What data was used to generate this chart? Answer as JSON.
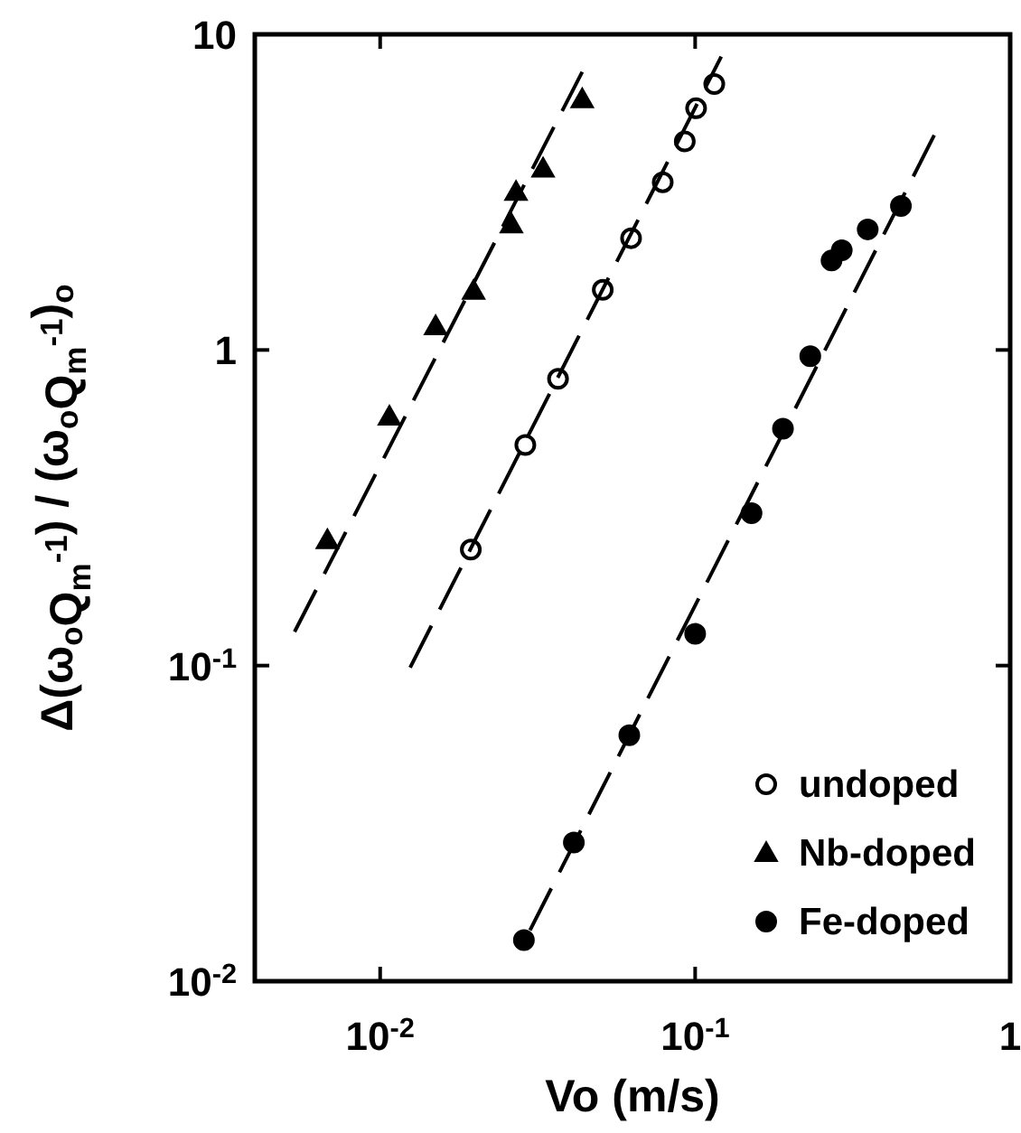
{
  "chart_data": {
    "type": "scatter",
    "xlabel": "Vo (m/s)",
    "ylabel": "Δ(ω$_{o}$Q$_{m}$$^{-1}$) / (ω$_{o}$Q$_{m}$$^{-1}$)$_{o}$",
    "log": "xy",
    "xlim": [
      0.004,
      1
    ],
    "ylim": [
      0.01,
      10
    ],
    "xticks": [
      {
        "value": 0.01,
        "label": "10$^{-2}$"
      },
      {
        "value": 0.1,
        "label": "10$^{-1}$"
      },
      1
    ],
    "yticks": [
      {
        "value": 0.01,
        "label": "10$^{-2}$"
      },
      {
        "value": 0.1,
        "label": "10$^{-1}$"
      },
      1,
      10
    ],
    "grid": false,
    "legend": "bottom right",
    "series": [
      {
        "name": "undoped",
        "color": "#ffffff",
        "marker": "circle",
        "x": [
          0.0194,
          0.0289,
          0.0367,
          0.0509,
          0.0626,
          0.0789,
          0.0927,
          0.1007,
          0.115
        ],
        "values": [
          0.233,
          0.5,
          0.81,
          1.55,
          2.26,
          3.4,
          4.58,
          5.83,
          6.96
        ]
      },
      {
        "name": "Nb-doped",
        "color": "#000000",
        "marker": "triangle",
        "x": [
          0.0068,
          0.0107,
          0.015,
          0.0198,
          0.0261,
          0.027,
          0.0329,
          0.0438
        ],
        "values": [
          0.25,
          0.615,
          1.19,
          1.54,
          2.5,
          3.17,
          3.76,
          6.23
        ]
      },
      {
        "name": "Fe-doped",
        "color": "#000000",
        "marker": "circle",
        "x": [
          0.0286,
          0.0412,
          0.0618,
          0.1,
          0.151,
          0.19,
          0.232,
          0.271,
          0.292,
          0.353,
          0.45
        ],
        "values": [
          0.0135,
          0.0275,
          0.0602,
          0.126,
          0.304,
          0.563,
          0.955,
          1.92,
          2.07,
          2.41,
          2.86
        ]
      },
      {
        "type": "line",
        "color": "#000000",
        "line_style": "dashed",
        "marker": "none",
        "x": [
          0.00535,
          0.0438
        ],
        "values": [
          0.128,
          7.6
        ]
      },
      {
        "type": "line",
        "color": "#000000",
        "line_style": "dashed",
        "marker": "none",
        "x": [
          0.01245,
          0.121
        ],
        "values": [
          0.0986,
          8.5
        ]
      },
      {
        "type": "line",
        "color": "#000000",
        "line_style": "dashed",
        "marker": "none",
        "x": [
          0.0299,
          0.574
        ],
        "values": [
          0.0145,
          4.79
        ]
      }
    ]
  }
}
